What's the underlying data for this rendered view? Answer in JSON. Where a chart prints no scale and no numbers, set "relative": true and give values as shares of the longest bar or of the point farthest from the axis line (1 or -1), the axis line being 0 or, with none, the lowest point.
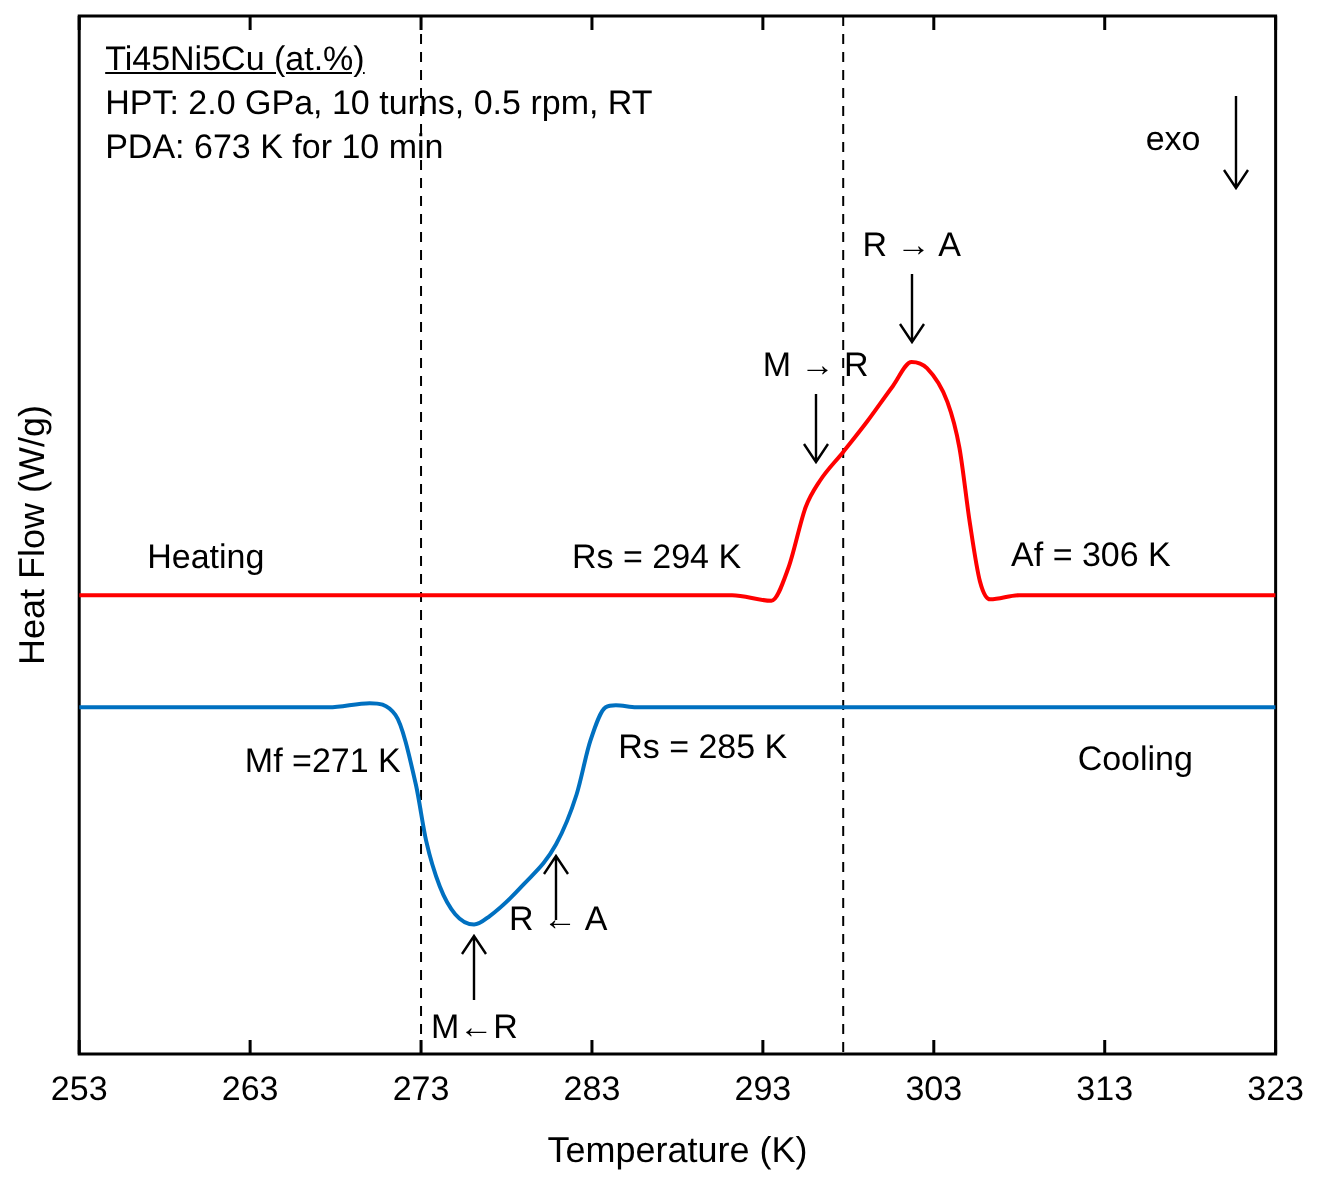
{
  "chart_data": {
    "type": "line",
    "relative": true,
    "title": "Ti45Ni5Cu (at.%)",
    "subtitle": "HPT: 2.0 GPa, 10 turns, 0.5 rpm, RT",
    "xlabel": "Temperature (K)",
    "ylabel": "Heat Flow (W/g)",
    "xlim": [
      253,
      323
    ],
    "xticks": [
      253,
      263,
      273,
      283,
      293,
      303,
      313,
      323
    ],
    "legend": false,
    "marker": "none",
    "series": [
      {
        "name": "Heating",
        "color": "#ff0000",
        "x": [
          253,
          270,
          291.2,
          293.5,
          294.5,
          295.5,
          296.3,
          297.7,
          299.1,
          300.6,
          301.7,
          302.6,
          303.8,
          304.5,
          305.1,
          305.7,
          306.3,
          308,
          323
        ],
        "values": [
          0.663,
          0.663,
          0.663,
          0.655,
          0.703,
          0.79,
          0.827,
          0.87,
          0.914,
          0.965,
          1.0,
          0.991,
          0.942,
          0.876,
          0.769,
          0.683,
          0.657,
          0.663,
          0.663
        ]
      },
      {
        "name": "Cooling",
        "color": "#0070c0",
        "x": [
          253,
          267.6,
          270,
          271.5,
          272.7,
          273.3,
          274.1,
          275,
          276.1,
          277,
          279,
          280.9,
          282.1,
          282.9,
          283.8,
          284.4,
          285.6,
          323
        ],
        "values": [
          0.501,
          0.501,
          0.507,
          0.49,
          0.389,
          0.308,
          0.242,
          0.202,
          0.187,
          0.199,
          0.245,
          0.303,
          0.375,
          0.452,
          0.501,
          0.504,
          0.501,
          0.501
        ]
      }
    ],
    "ref_lines": [
      {
        "axis": "x",
        "value": 273,
        "color": "#000000",
        "line_style": "dashed"
      },
      {
        "axis": "x",
        "value": 297.7,
        "color": "#000000",
        "line_style": "dashed"
      }
    ],
    "annotations": [
      "PDA: 673 K for 10 min",
      "exo",
      {
        "text": "Rs = 294 K",
        "x": 294,
        "y": 0.663
      },
      {
        "text": "Af = 306 K",
        "x": 306,
        "y": 0.663
      },
      {
        "text": "Mf =271 K",
        "x": 271,
        "y": 0.501
      },
      {
        "text": "Rs = 285 K",
        "x": 285,
        "y": 0.501
      },
      {
        "text": "M → R",
        "x": 296.1,
        "y": 0.827
      },
      {
        "text": "R → A",
        "x": 301.7,
        "y": 1.0
      },
      {
        "text": "R ← A",
        "x": 280.9,
        "y": 0.303
      },
      {
        "text": "M←R",
        "x": 276.1,
        "y": 0.187
      }
    ]
  }
}
